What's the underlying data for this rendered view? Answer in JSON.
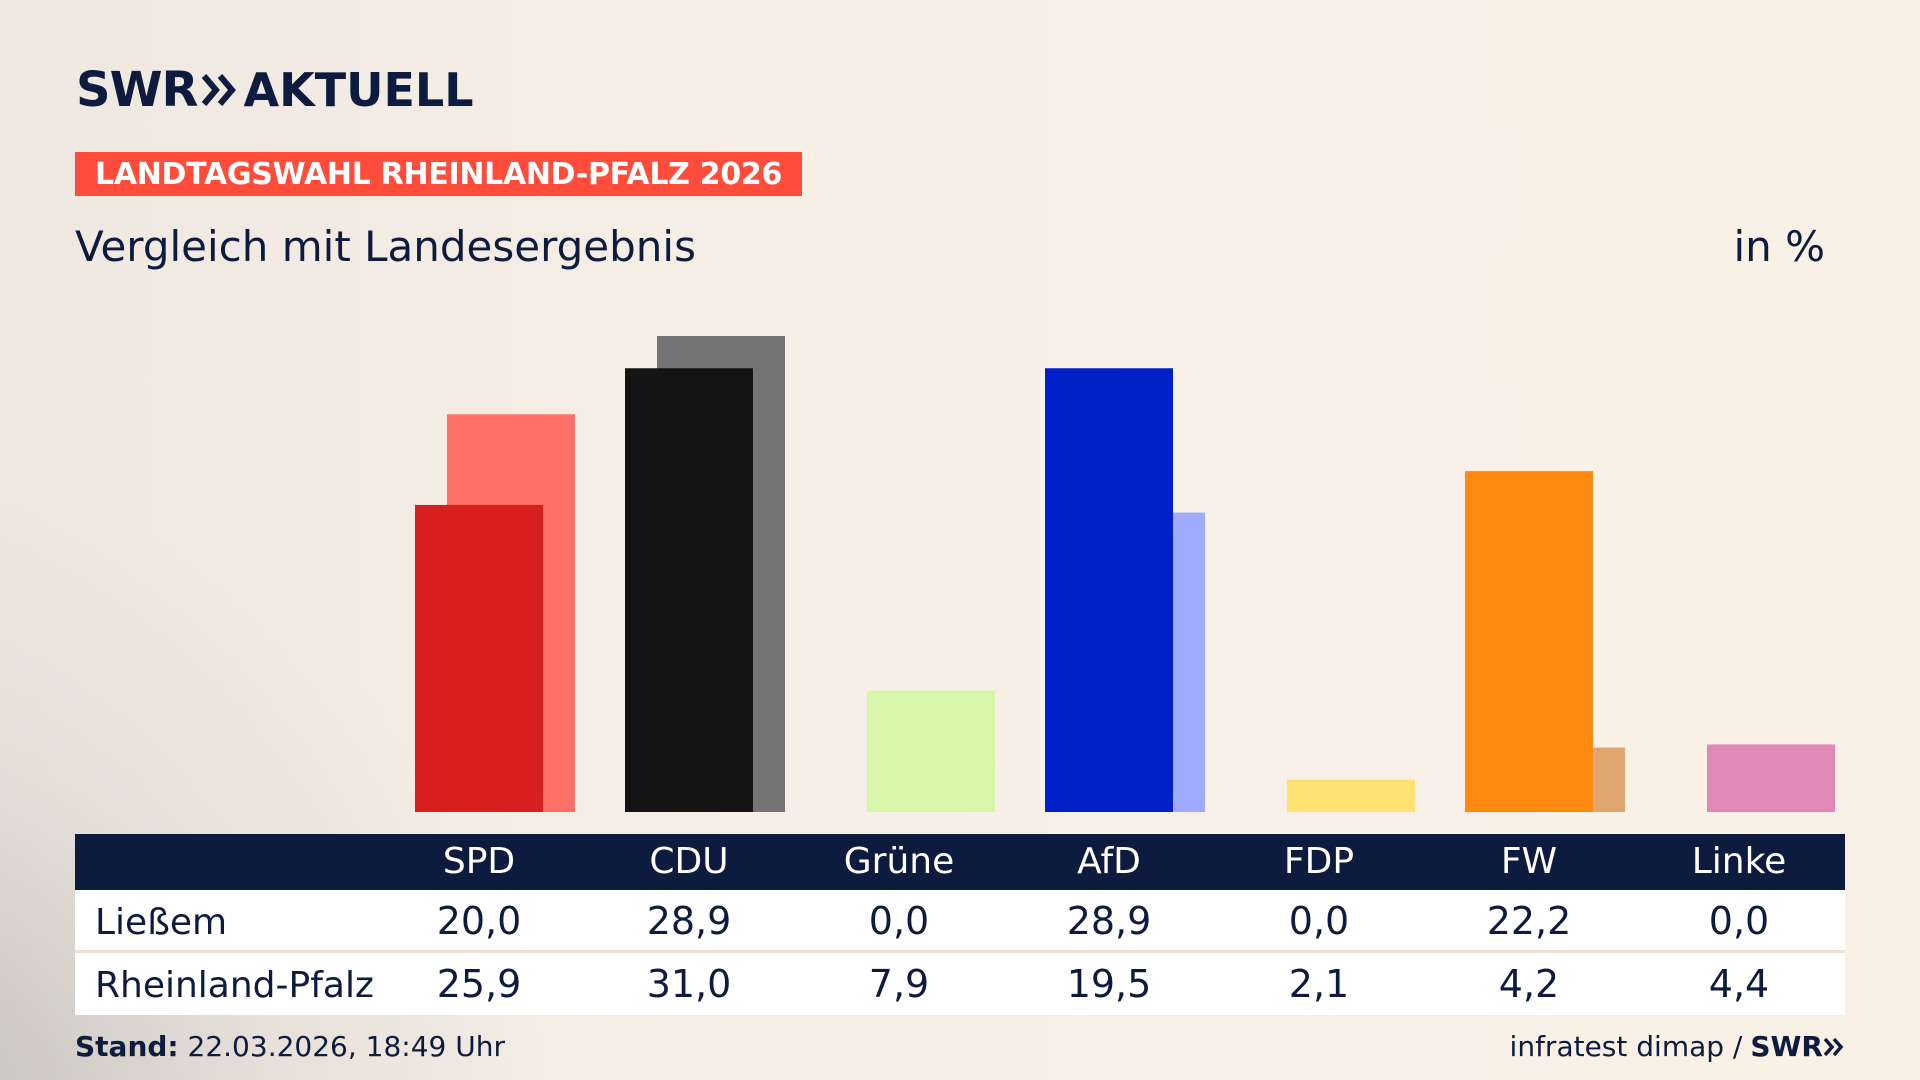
{
  "header": {
    "logo_swr": "SWR",
    "logo_aktuell": "AKTUELL",
    "badge": "LANDTAGSWAHL RHEINLAND-PFALZ 2026",
    "subtitle": "Vergleich mit Landesergebnis",
    "unit": "in %"
  },
  "table": {
    "rows": [
      {
        "label": "Ließem"
      },
      {
        "label": "Rheinland-Pfalz"
      }
    ]
  },
  "footer": {
    "stand_label": "Stand:",
    "stand_value": "22.03.2026, 18:49 Uhr",
    "source": "infratest dimap /",
    "source_logo": "SWR"
  },
  "chart_data": {
    "type": "bar",
    "categories": [
      "SPD",
      "CDU",
      "Grüne",
      "AfD",
      "FDP",
      "FW",
      "Linke"
    ],
    "series": [
      {
        "name": "Ließem",
        "values": [
          20.0,
          28.9,
          0.0,
          28.9,
          0.0,
          22.2,
          0.0
        ],
        "labels": [
          "20,0",
          "28,9",
          "0,0",
          "28,9",
          "0,0",
          "22,2",
          "0,0"
        ]
      },
      {
        "name": "Rheinland-Pfalz",
        "values": [
          25.9,
          31.0,
          7.9,
          19.5,
          2.1,
          4.2,
          4.4
        ],
        "labels": [
          "25,9",
          "31,0",
          "7,9",
          "19,5",
          "2,1",
          "4,2",
          "4,4"
        ]
      }
    ],
    "colors": {
      "local": [
        "#d71f1f",
        "#141414",
        "#6fb33b",
        "#0020c8",
        "#ffd800",
        "#ff8a12",
        "#c4136f"
      ],
      "state": [
        "#ff7068",
        "#747474",
        "#d7f6a8",
        "#a0abff",
        "#ffe274",
        "#e0a670",
        "#e089b7"
      ]
    },
    "ylim": [
      0,
      31.0
    ],
    "grid": false,
    "legend": "none"
  }
}
